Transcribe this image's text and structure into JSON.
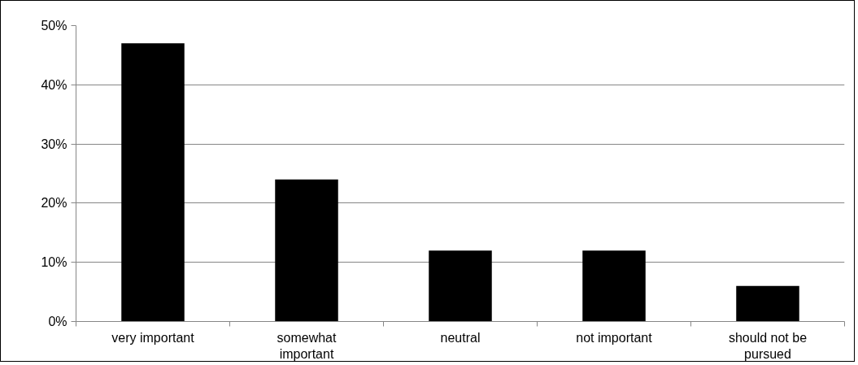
{
  "chart_data": {
    "type": "bar",
    "categories": [
      "very important",
      "somewhat important",
      "neutral",
      "not important",
      "should not be pursued"
    ],
    "values": [
      47,
      24,
      12,
      12,
      6
    ],
    "color": "#000000",
    "ylim": [
      0,
      50
    ],
    "yticks": [
      {
        "value": 0,
        "label": "0%"
      },
      {
        "value": 10,
        "label": "10%"
      },
      {
        "value": 20,
        "label": "20%"
      },
      {
        "value": 30,
        "label": "30%"
      },
      {
        "value": 40,
        "label": "40%"
      },
      {
        "value": 50,
        "label": "50%"
      }
    ],
    "grid": "y"
  }
}
